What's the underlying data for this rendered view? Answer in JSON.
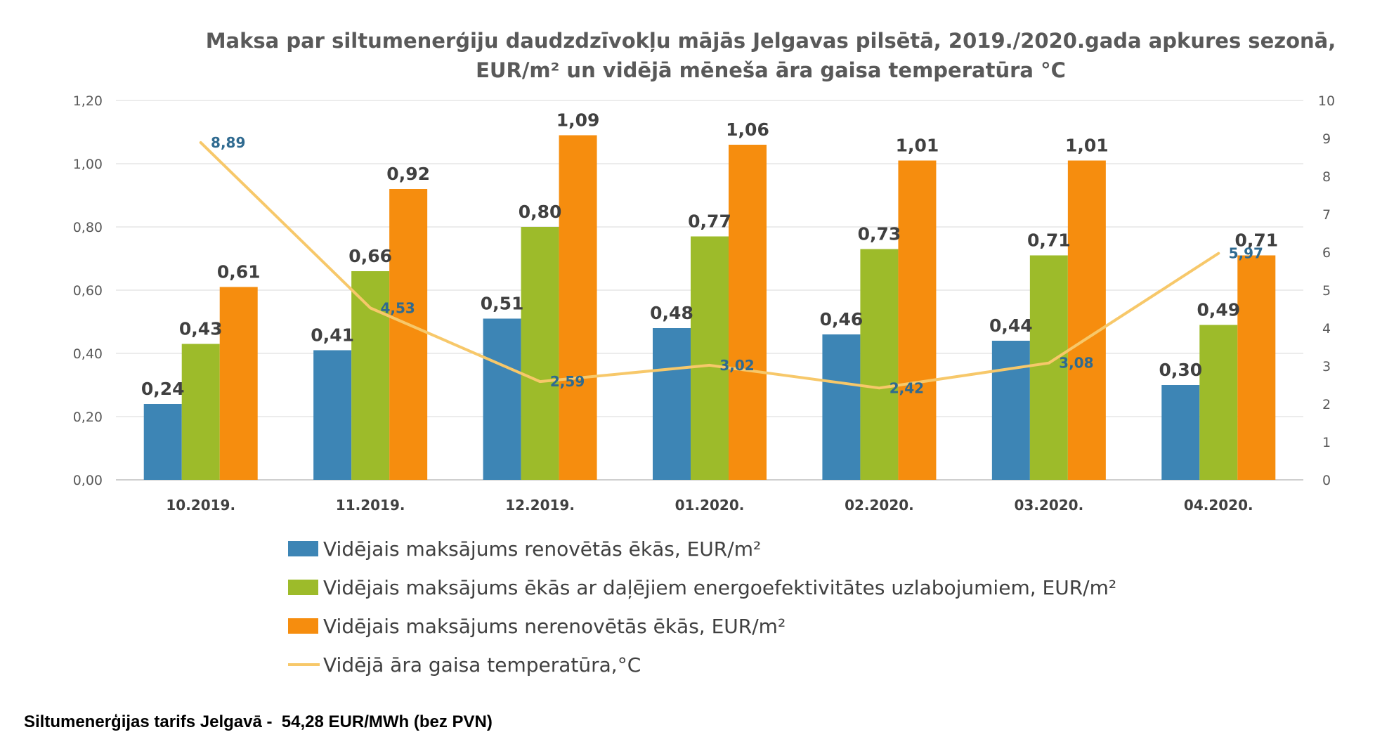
{
  "chart_data": {
    "type": "bar",
    "title_lines": [
      "Maksa par siltumenerģiju daudzdzīvokļu mājās Jelgavas pilsētā, 2019./2020.gada apkures sezonā,",
      "EUR/m² un vidējā mēneša āra gaisa temperatūra °C"
    ],
    "categories": [
      "10.2019.",
      "11.2019.",
      "12.2019.",
      "01.2020.",
      "02.2020.",
      "03.2020.",
      "04.2020."
    ],
    "y_left": {
      "ylim": [
        0,
        1.2
      ],
      "ticks": [
        "0,00",
        "0,20",
        "0,40",
        "0,60",
        "0,80",
        "1,00",
        "1,20"
      ]
    },
    "y_right": {
      "ylim": [
        0,
        10
      ],
      "ticks": [
        "0",
        "1",
        "2",
        "3",
        "4",
        "5",
        "6",
        "7",
        "8",
        "9",
        "10"
      ]
    },
    "grid": true,
    "legend_position": "bottom",
    "series": [
      {
        "name": "Vidējais maksājums renovētās ēkās, EUR/m²",
        "kind": "bar",
        "axis": "left",
        "color": "#3d85b5",
        "values": [
          0.24,
          0.41,
          0.51,
          0.48,
          0.46,
          0.44,
          0.3
        ],
        "labels": [
          "0,24",
          "0,41",
          "0,51",
          "0,48",
          "0,46",
          "0,44",
          "0,30"
        ]
      },
      {
        "name": "Vidējais maksājums ēkās ar daļējiem energoefektivitātes uzlabojumiem, EUR/m²",
        "kind": "bar",
        "axis": "left",
        "color": "#9dbb2a",
        "values": [
          0.43,
          0.66,
          0.8,
          0.77,
          0.73,
          0.71,
          0.49
        ],
        "labels": [
          "0,43",
          "0,66",
          "0,80",
          "0,77",
          "0,73",
          "0,71",
          "0,49"
        ]
      },
      {
        "name": "Vidējais maksājums nerenovētās ēkās, EUR/m²",
        "kind": "bar",
        "axis": "left",
        "color": "#f68d0e",
        "values": [
          0.61,
          0.92,
          1.09,
          1.06,
          1.01,
          1.01,
          0.71
        ],
        "labels": [
          "0,61",
          "0,92",
          "1,09",
          "1,06",
          "1,01",
          "1,01",
          "0,71"
        ]
      },
      {
        "name": "Vidējā āra gaisa temperatūra,°C",
        "kind": "line",
        "axis": "right",
        "color": "#f7c86a",
        "label_color": "#2f6a90",
        "values": [
          8.89,
          4.53,
          2.59,
          3.02,
          2.42,
          3.08,
          5.97
        ],
        "labels": [
          "8,89",
          "4,53",
          "2,59",
          "3,02",
          "2,42",
          "3,08",
          "5,97"
        ]
      }
    ]
  },
  "footnote": "Siltumenerģijas tarifs Jelgavā -  54,28 EUR/MWh (bez PVN)"
}
